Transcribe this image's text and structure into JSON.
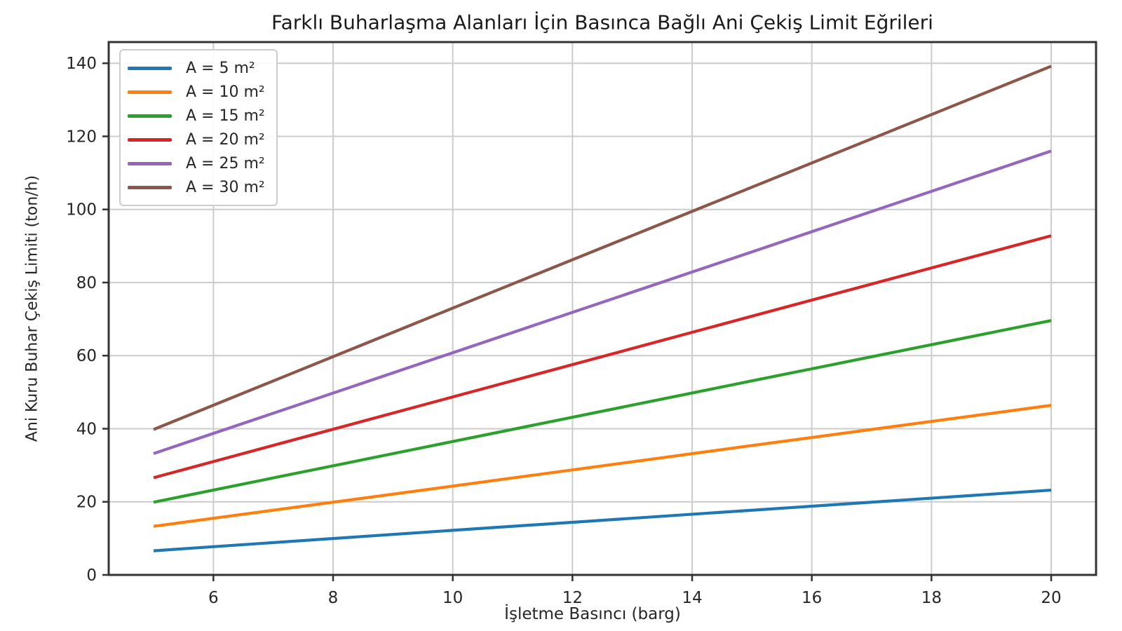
{
  "chart_data": {
    "type": "line",
    "title": "Farklı Buharlaşma Alanları İçin Basınca Bağlı Ani Çekiş Limit Eğrileri",
    "xlabel": "İşletme Basıncı (barg)",
    "ylabel": "Ani Kuru Buhar Çekiş Limiti (ton/h)",
    "x": [
      5,
      10,
      15,
      20
    ],
    "series": [
      {
        "name": "A = 5 m²",
        "color": "#1f77b4",
        "values": [
          6.6,
          12.2,
          17.7,
          23.2
        ]
      },
      {
        "name": "A = 10 m²",
        "color": "#ff7f0e",
        "values": [
          13.3,
          24.3,
          35.4,
          46.4
        ]
      },
      {
        "name": "A = 15 m²",
        "color": "#2ca02c",
        "values": [
          19.9,
          36.5,
          53.1,
          69.6
        ]
      },
      {
        "name": "A = 20 m²",
        "color": "#d62728",
        "values": [
          26.6,
          48.7,
          70.8,
          92.8
        ]
      },
      {
        "name": "A = 25 m²",
        "color": "#9467bd",
        "values": [
          33.2,
          60.8,
          88.4,
          116.0
        ]
      },
      {
        "name": "A = 30 m²",
        "color": "#8c564b",
        "values": [
          39.8,
          73.0,
          106.1,
          139.2
        ]
      }
    ],
    "xticks": [
      6,
      8,
      10,
      12,
      14,
      16,
      18,
      20
    ],
    "yticks": [
      0,
      20,
      40,
      60,
      80,
      100,
      120,
      140
    ],
    "xlim": [
      4.25,
      20.75
    ],
    "ylim": [
      0,
      145.8
    ],
    "grid": true,
    "legend_position": "upper left",
    "colors": {
      "grid": "#cccccc",
      "spine": "#333333",
      "tick_label": "#262626",
      "background": "#ffffff"
    }
  }
}
